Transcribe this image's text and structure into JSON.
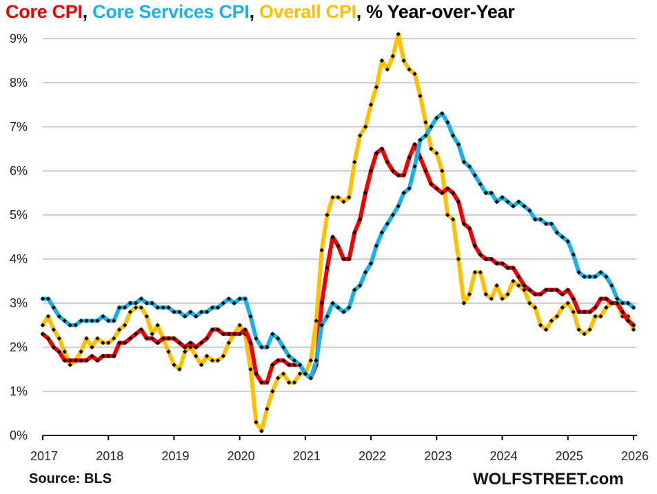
{
  "title": {
    "core": "Core CPI",
    "sep1": ", ",
    "services": "Core Services CPI",
    "sep2": ", ",
    "overall": "Overall CPI",
    "rest": ", % Year-over-Year"
  },
  "source": "Source: BLS",
  "brand": "WOLFSTREET.com",
  "chart_data": {
    "type": "line",
    "title": "Core CPI, Core Services CPI, Overall CPI, % Year-over-Year",
    "xlabel": "",
    "ylabel": "",
    "x_start": "2017-01",
    "x_end": "2026-01",
    "x_frequency": "monthly",
    "xlim": [
      2017,
      2026
    ],
    "ylim": [
      0,
      9
    ],
    "grid": true,
    "legend": "in title",
    "x_tick_labels": [
      "2017",
      "2018",
      "2019",
      "2020",
      "2021",
      "2022",
      "2023",
      "2024",
      "2025",
      "2026"
    ],
    "y_tick_labels": [
      "0%",
      "1%",
      "2%",
      "3%",
      "4%",
      "5%",
      "6%",
      "7%",
      "8%",
      "9%"
    ],
    "series": [
      {
        "name": "Overall CPI",
        "color": "#ffc000",
        "values": [
          2.5,
          2.7,
          2.4,
          2.2,
          1.9,
          1.6,
          1.7,
          1.9,
          2.2,
          2.0,
          2.2,
          2.1,
          2.1,
          2.2,
          2.4,
          2.5,
          2.8,
          2.9,
          2.9,
          2.7,
          2.3,
          2.5,
          2.2,
          1.9,
          1.6,
          1.5,
          1.9,
          2.0,
          1.8,
          1.6,
          1.8,
          1.7,
          1.7,
          1.8,
          2.1,
          2.3,
          2.5,
          2.3,
          1.5,
          0.3,
          0.1,
          0.6,
          1.0,
          1.3,
          1.4,
          1.2,
          1.2,
          1.4,
          1.4,
          1.7,
          2.6,
          4.2,
          5.0,
          5.4,
          5.4,
          5.3,
          5.4,
          6.2,
          6.8,
          7.0,
          7.5,
          7.9,
          8.5,
          8.3,
          8.6,
          9.1,
          8.5,
          8.3,
          8.2,
          7.7,
          7.1,
          6.5,
          6.4,
          6.0,
          5.0,
          4.9,
          4.0,
          3.0,
          3.2,
          3.7,
          3.7,
          3.2,
          3.1,
          3.4,
          3.1,
          3.2,
          3.5,
          3.4,
          3.3,
          3.0,
          2.9,
          2.5,
          2.4,
          2.6,
          2.7,
          2.9,
          3.0,
          2.8,
          2.4,
          2.3,
          2.4,
          2.7,
          2.7,
          2.9,
          3.0,
          3.0,
          2.7,
          2.7,
          2.4
        ]
      },
      {
        "name": "Core CPI",
        "color": "#ee0000",
        "values": [
          2.3,
          2.2,
          2.0,
          1.9,
          1.7,
          1.7,
          1.7,
          1.7,
          1.7,
          1.8,
          1.7,
          1.8,
          1.8,
          1.8,
          2.1,
          2.1,
          2.2,
          2.3,
          2.4,
          2.2,
          2.2,
          2.1,
          2.2,
          2.2,
          2.2,
          2.1,
          2.0,
          2.1,
          2.0,
          2.1,
          2.2,
          2.4,
          2.4,
          2.3,
          2.3,
          2.3,
          2.3,
          2.4,
          2.1,
          1.4,
          1.2,
          1.2,
          1.6,
          1.7,
          1.7,
          1.6,
          1.6,
          1.6,
          1.4,
          1.3,
          1.6,
          3.0,
          3.8,
          4.5,
          4.3,
          4.0,
          4.0,
          4.6,
          4.9,
          5.5,
          6.0,
          6.4,
          6.5,
          6.2,
          6.0,
          5.9,
          5.9,
          6.3,
          6.6,
          6.3,
          6.0,
          5.7,
          5.6,
          5.5,
          5.6,
          5.5,
          5.3,
          4.8,
          4.7,
          4.3,
          4.1,
          4.0,
          4.0,
          3.9,
          3.9,
          3.8,
          3.8,
          3.6,
          3.4,
          3.3,
          3.2,
          3.2,
          3.3,
          3.3,
          3.3,
          3.2,
          3.3,
          3.1,
          2.8,
          2.8,
          2.8,
          2.9,
          3.1,
          3.1,
          3.0,
          3.0,
          2.8,
          2.6,
          2.5
        ]
      },
      {
        "name": "Core Services CPI",
        "color": "#1ab0e8",
        "values": [
          3.1,
          3.1,
          2.9,
          2.7,
          2.6,
          2.5,
          2.5,
          2.6,
          2.6,
          2.6,
          2.6,
          2.7,
          2.6,
          2.6,
          2.9,
          2.9,
          3.0,
          3.0,
          3.1,
          3.0,
          3.0,
          2.9,
          2.9,
          2.9,
          2.8,
          2.8,
          2.7,
          2.8,
          2.7,
          2.8,
          2.8,
          2.9,
          2.9,
          3.0,
          3.1,
          3.0,
          3.1,
          3.1,
          2.7,
          2.2,
          2.0,
          2.0,
          2.3,
          2.2,
          2.0,
          1.8,
          1.7,
          1.6,
          1.4,
          1.3,
          1.7,
          2.5,
          2.7,
          3.0,
          2.9,
          2.8,
          2.9,
          3.3,
          3.4,
          3.7,
          3.9,
          4.3,
          4.6,
          4.8,
          5.0,
          5.2,
          5.5,
          5.6,
          6.1,
          6.7,
          6.8,
          7.0,
          7.2,
          7.3,
          7.1,
          6.8,
          6.6,
          6.2,
          6.1,
          5.9,
          5.7,
          5.5,
          5.5,
          5.3,
          5.4,
          5.3,
          5.2,
          5.3,
          5.2,
          5.1,
          4.9,
          4.9,
          4.8,
          4.8,
          4.6,
          4.5,
          4.4,
          4.1,
          3.7,
          3.6,
          3.6,
          3.6,
          3.7,
          3.6,
          3.4,
          3.1,
          3.0,
          3.0,
          2.9
        ]
      }
    ]
  }
}
